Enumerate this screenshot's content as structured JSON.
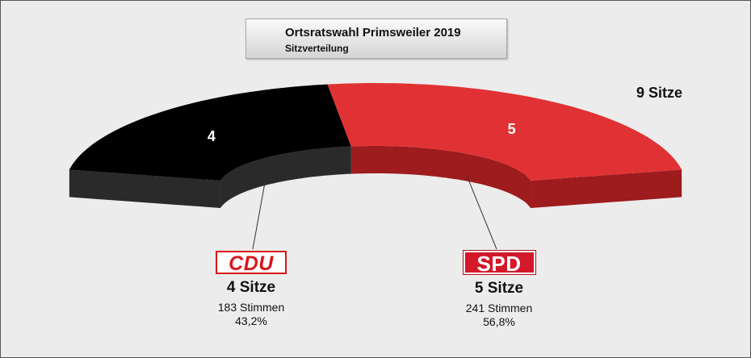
{
  "chart_data": {
    "type": "pie",
    "title": "Ortsratswahl Primsweiler 2019",
    "subtitle": "Sitzverteilung",
    "total_label": "9 Sitze",
    "total": 9,
    "segments": [
      {
        "party": "CDU",
        "value": 4,
        "label": "4",
        "seats_label": "4 Sitze",
        "votes_label": "183 Stimmen",
        "percent_label": "43,2%",
        "color": "#000000",
        "side_color": "#2a2a2a"
      },
      {
        "party": "SPD",
        "value": 5,
        "label": "5",
        "seats_label": "5 Sitze",
        "votes_label": "241 Stimmen",
        "percent_label": "56,8%",
        "color": "#e03234",
        "side_color": "#9e1b1e"
      }
    ]
  }
}
